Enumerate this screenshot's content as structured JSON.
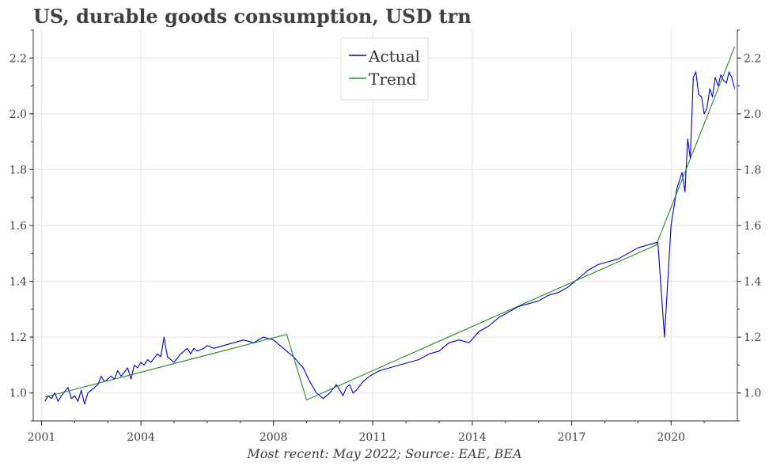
{
  "title": "US, durable goods consumption, USD trn",
  "caption": "Most recent: May 2022; Source: EAE, BEA",
  "chart_data": {
    "type": "line",
    "title": "US, durable goods consumption, USD trn",
    "xlabel": "",
    "ylabel": "",
    "xlim": [
      2000.75,
      2022.0
    ],
    "ylim": [
      0.9,
      2.3
    ],
    "x_ticks": [
      "2001",
      "2004",
      "2008",
      "2011",
      "2014",
      "2017",
      "2020"
    ],
    "y_ticks": [
      "1.0",
      "1.2",
      "1.4",
      "1.6",
      "1.8",
      "2.0",
      "2.2"
    ],
    "grid": true,
    "legend_position": "top-center",
    "colors": {
      "Actual": "#0000cc",
      "Trend": "#228b22"
    },
    "series": [
      {
        "name": "Actual",
        "x": [
          2001.1,
          2001.2,
          2001.3,
          2001.4,
          2001.5,
          2001.6,
          2001.8,
          2001.9,
          2002.0,
          2002.1,
          2002.2,
          2002.3,
          2002.4,
          2002.5,
          2002.7,
          2002.8,
          2002.9,
          2003.0,
          2003.1,
          2003.2,
          2003.3,
          2003.4,
          2003.6,
          2003.7,
          2003.8,
          2003.9,
          2004.0,
          2004.1,
          2004.2,
          2004.3,
          2004.5,
          2004.6,
          2004.7,
          2004.8,
          2004.9,
          2005.0,
          2005.2,
          2005.3,
          2005.4,
          2005.5,
          2005.6,
          2005.7,
          2005.9,
          2006.0,
          2006.2,
          2006.5,
          2006.8,
          2007.1,
          2007.4,
          2007.7,
          2008.0,
          2008.3,
          2008.6,
          2008.9,
          2009.1,
          2009.3,
          2009.5,
          2009.7,
          2009.9,
          2010.1,
          2010.2,
          2010.3,
          2010.4,
          2010.5,
          2010.7,
          2010.9,
          2011.2,
          2011.5,
          2011.8,
          2012.1,
          2012.4,
          2012.7,
          2013.0,
          2013.3,
          2013.6,
          2013.9,
          2014.2,
          2014.5,
          2014.8,
          2015.1,
          2015.4,
          2015.7,
          2016.0,
          2016.3,
          2016.6,
          2016.9,
          2017.2,
          2017.5,
          2017.8,
          2018.1,
          2018.4,
          2018.7,
          2019.0,
          2019.3,
          2019.6,
          2019.8,
          2020.0,
          2020.17,
          2020.25,
          2020.33,
          2020.42,
          2020.5,
          2020.58,
          2020.67,
          2020.75,
          2020.83,
          2020.92,
          2021.0,
          2021.08,
          2021.17,
          2021.25,
          2021.33,
          2021.42,
          2021.5,
          2021.58,
          2021.67,
          2021.75,
          2021.83,
          2021.92
        ],
        "values": [
          0.97,
          0.99,
          0.98,
          1.0,
          0.97,
          0.99,
          1.02,
          0.98,
          0.99,
          0.97,
          1.01,
          0.96,
          1.0,
          1.01,
          1.03,
          1.06,
          1.04,
          1.05,
          1.06,
          1.05,
          1.08,
          1.06,
          1.09,
          1.05,
          1.1,
          1.09,
          1.11,
          1.1,
          1.12,
          1.11,
          1.14,
          1.13,
          1.2,
          1.13,
          1.12,
          1.11,
          1.14,
          1.15,
          1.16,
          1.14,
          1.16,
          1.15,
          1.16,
          1.17,
          1.16,
          1.17,
          1.18,
          1.19,
          1.18,
          1.2,
          1.19,
          1.16,
          1.13,
          1.09,
          1.04,
          1.0,
          0.98,
          1.0,
          1.03,
          0.99,
          1.02,
          1.03,
          1.0,
          1.01,
          1.04,
          1.06,
          1.08,
          1.09,
          1.1,
          1.11,
          1.12,
          1.14,
          1.15,
          1.18,
          1.19,
          1.18,
          1.22,
          1.24,
          1.27,
          1.29,
          1.31,
          1.32,
          1.33,
          1.35,
          1.36,
          1.38,
          1.41,
          1.44,
          1.46,
          1.47,
          1.48,
          1.5,
          1.52,
          1.53,
          1.54,
          1.2,
          1.6,
          1.73,
          1.76,
          1.79,
          1.72,
          1.91,
          1.84,
          2.13,
          2.15,
          2.07,
          2.06,
          2.0,
          2.02,
          2.09,
          2.06,
          2.13,
          2.1,
          2.14,
          2.12,
          2.11,
          2.15,
          2.13,
          2.09
        ]
      },
      {
        "name": "Trend",
        "x": [
          2001.1,
          2008.4,
          2009.0,
          2019.55,
          2021.92
        ],
        "values": [
          0.985,
          1.21,
          0.975,
          1.53,
          2.24
        ]
      }
    ]
  }
}
